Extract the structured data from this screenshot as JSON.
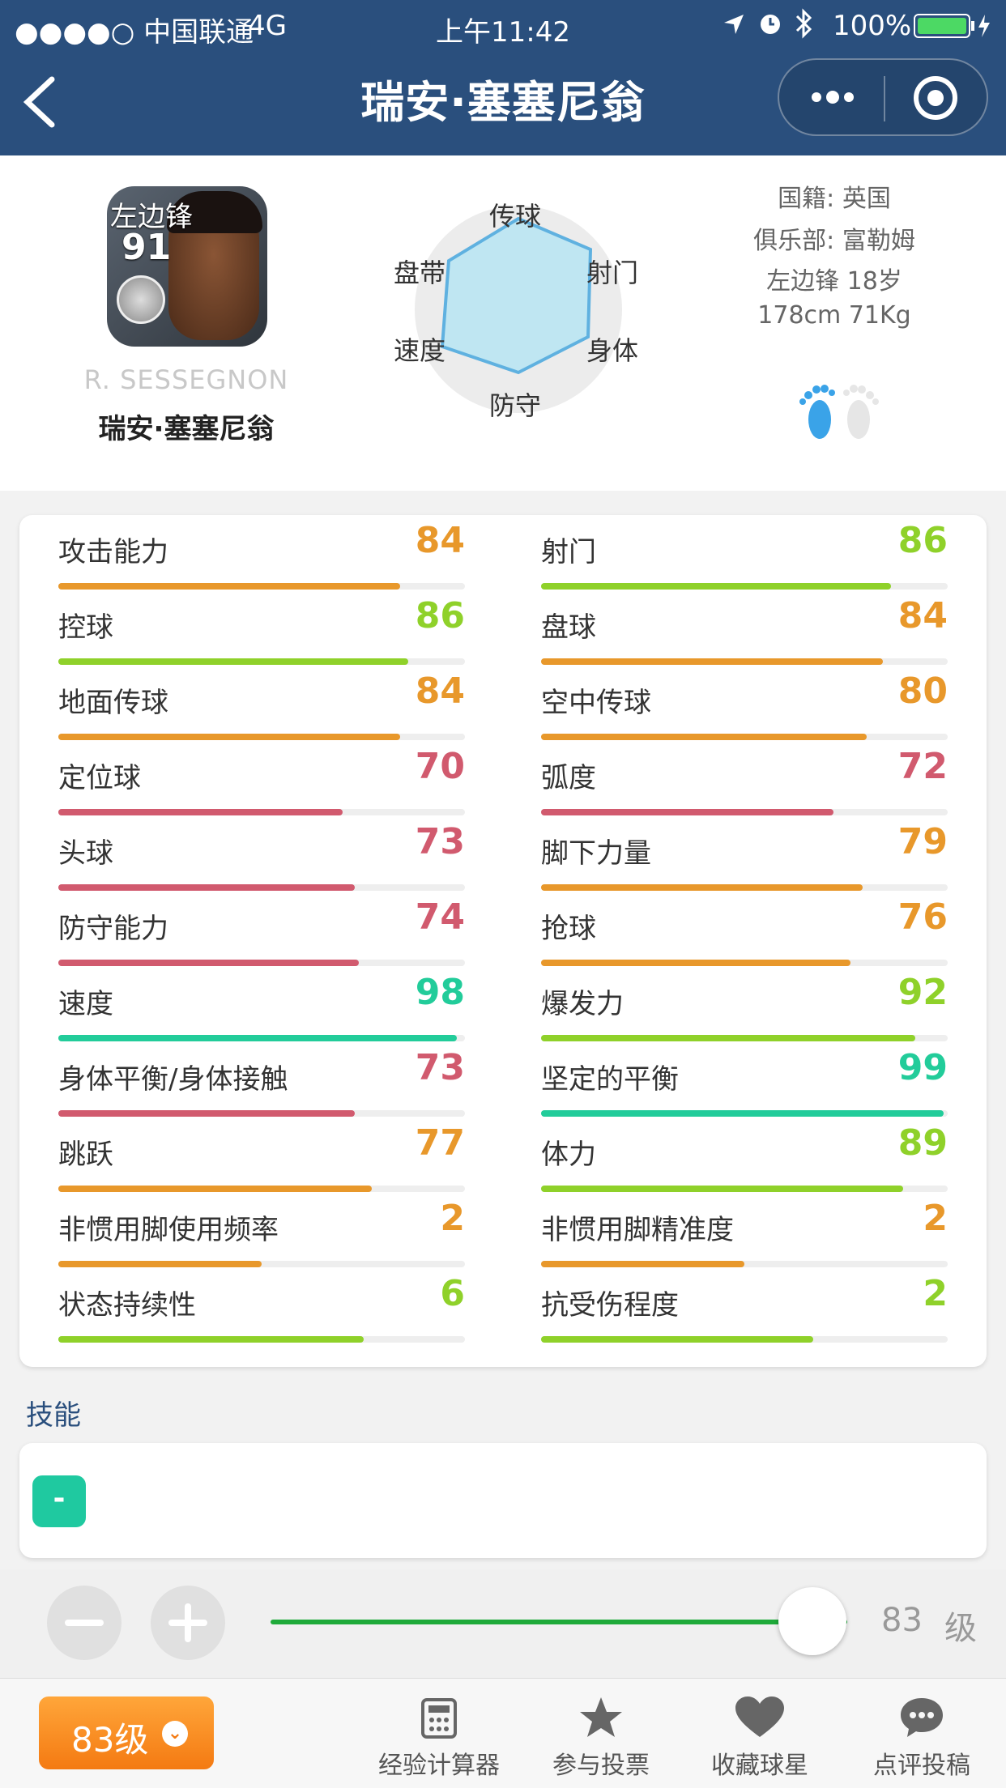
{
  "status_bar": {
    "carrier": "●●●●○ 中国联通",
    "network": "4G",
    "time": "上午11:42",
    "battery": "100%"
  },
  "nav": {
    "title": "瑞安·塞塞尼翁"
  },
  "player": {
    "card_position": "左边锋",
    "card_rating": "91",
    "name_en": "R. SESSEGNON",
    "name_cn": "瑞安·塞塞尼翁",
    "info": [
      "国籍: 英国",
      "俱乐部: 富勒姆",
      "左边锋 18岁",
      "178cm 71Kg"
    ]
  },
  "radar": {
    "labels": {
      "top": "传球",
      "top_right": "射门",
      "bottom_right": "身体",
      "bottom": "防守",
      "bottom_left": "速度",
      "top_left": "盘带"
    }
  },
  "stats": [
    {
      "label": "攻击能力",
      "value": "84",
      "fraction": 0.84,
      "color": "#e8982b"
    },
    {
      "label": "射门",
      "value": "86",
      "fraction": 0.86,
      "color": "#8fd12a"
    },
    {
      "label": "控球",
      "value": "86",
      "fraction": 0.86,
      "color": "#8fd12a"
    },
    {
      "label": "盘球",
      "value": "84",
      "fraction": 0.84,
      "color": "#e8982b"
    },
    {
      "label": "地面传球",
      "value": "84",
      "fraction": 0.84,
      "color": "#e8982b"
    },
    {
      "label": "空中传球",
      "value": "80",
      "fraction": 0.8,
      "color": "#e8982b"
    },
    {
      "label": "定位球",
      "value": "70",
      "fraction": 0.7,
      "color": "#d15a6e"
    },
    {
      "label": "弧度",
      "value": "72",
      "fraction": 0.72,
      "color": "#d15a6e"
    },
    {
      "label": "头球",
      "value": "73",
      "fraction": 0.73,
      "color": "#d15a6e"
    },
    {
      "label": "脚下力量",
      "value": "79",
      "fraction": 0.79,
      "color": "#e8982b"
    },
    {
      "label": "防守能力",
      "value": "74",
      "fraction": 0.74,
      "color": "#d15a6e"
    },
    {
      "label": "抢球",
      "value": "76",
      "fraction": 0.76,
      "color": "#e8982b"
    },
    {
      "label": "速度",
      "value": "98",
      "fraction": 0.98,
      "color": "#22cc9a"
    },
    {
      "label": "爆发力",
      "value": "92",
      "fraction": 0.92,
      "color": "#8fd12a"
    },
    {
      "label": "身体平衡/身体接触",
      "value": "73",
      "fraction": 0.73,
      "color": "#d15a6e"
    },
    {
      "label": "坚定的平衡",
      "value": "99",
      "fraction": 0.99,
      "color": "#22cc9a"
    },
    {
      "label": "跳跃",
      "value": "77",
      "fraction": 0.77,
      "color": "#e8982b"
    },
    {
      "label": "体力",
      "value": "89",
      "fraction": 0.89,
      "color": "#8fd12a"
    },
    {
      "label": "非惯用脚使用频率",
      "value": "2",
      "fraction": 0.5,
      "color": "#e8982b"
    },
    {
      "label": "非惯用脚精准度",
      "value": "2",
      "fraction": 0.5,
      "color": "#e8982b"
    },
    {
      "label": "状态持续性",
      "value": "6",
      "fraction": 0.75,
      "color": "#8fd12a"
    },
    {
      "label": "抗受伤程度",
      "value": "2",
      "fraction": 0.67,
      "color": "#8fd12a"
    }
  ],
  "skills": {
    "title": "技能",
    "items": [
      "-"
    ]
  },
  "level": {
    "value": "83",
    "unit": "级",
    "slider_fraction": 0.94
  },
  "bottom_bar": {
    "level_button": "83级",
    "tabs": [
      {
        "label": "经验计算器",
        "icon": "calculator-icon"
      },
      {
        "label": "参与投票",
        "icon": "star-icon"
      },
      {
        "label": "收藏球星",
        "icon": "heart-icon"
      },
      {
        "label": "点评投稿",
        "icon": "chat-bubble-icon"
      }
    ]
  },
  "colors": {
    "header": "#2a4f7d",
    "orange": "#e8982b",
    "green": "#8fd12a",
    "red": "#d15a6e",
    "teal": "#22cc9a"
  }
}
